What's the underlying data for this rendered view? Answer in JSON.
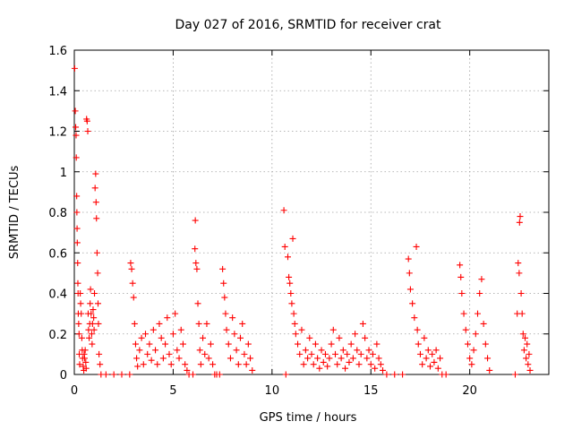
{
  "chart_data": {
    "type": "scatter",
    "title": "Day 027 of 2016, SRMTID for receiver crat",
    "xlabel": "GPS time / hours",
    "ylabel": "SRMTID / TECUs",
    "xlim": [
      0,
      24
    ],
    "ylim": [
      0,
      1.6
    ],
    "xticks": [
      {
        "value": 0,
        "label": "0"
      },
      {
        "value": 5,
        "label": "5"
      },
      {
        "value": 10,
        "label": "10"
      },
      {
        "value": 15,
        "label": "15"
      },
      {
        "value": 20,
        "label": "20"
      }
    ],
    "yticks": [
      {
        "value": 0,
        "label": "0"
      },
      {
        "value": 0.2,
        "label": "0.2"
      },
      {
        "value": 0.4,
        "label": "0.4"
      },
      {
        "value": 0.6,
        "label": "0.6"
      },
      {
        "value": 0.8,
        "label": "0.8"
      },
      {
        "value": 1.0,
        "label": "1"
      },
      {
        "value": 1.2,
        "label": "1.2"
      },
      {
        "value": 1.4,
        "label": "1.4"
      },
      {
        "value": 1.6,
        "label": "1.6"
      }
    ],
    "grid": true,
    "marker": "+",
    "series": [
      {
        "name": "SRMTID",
        "color": "#ff0000",
        "points": [
          [
            0.02,
            1.51
          ],
          [
            0.05,
            1.3
          ],
          [
            0.07,
            1.22
          ],
          [
            0.09,
            1.18
          ],
          [
            0.1,
            1.07
          ],
          [
            0.12,
            0.88
          ],
          [
            0.13,
            0.8
          ],
          [
            0.14,
            0.72
          ],
          [
            0.15,
            0.65
          ],
          [
            0.17,
            0.55
          ],
          [
            0.18,
            0.45
          ],
          [
            0.19,
            0.4
          ],
          [
            0.2,
            0.3
          ],
          [
            0.22,
            0.25
          ],
          [
            0.24,
            0.2
          ],
          [
            0.25,
            0.1
          ],
          [
            0.27,
            0.05
          ],
          [
            0.3,
            0.4
          ],
          [
            0.32,
            0.35
          ],
          [
            0.35,
            0.3
          ],
          [
            0.38,
            0.18
          ],
          [
            0.4,
            0.12
          ],
          [
            0.42,
            0.08
          ],
          [
            0.45,
            0.04
          ],
          [
            0.48,
            0.02
          ],
          [
            0.5,
            0.1
          ],
          [
            0.52,
            0.08
          ],
          [
            0.55,
            0.12
          ],
          [
            0.58,
            0.06
          ],
          [
            0.6,
            0.03
          ],
          [
            0.62,
            1.26
          ],
          [
            0.65,
            1.25
          ],
          [
            0.68,
            1.2
          ],
          [
            0.7,
            0.3
          ],
          [
            0.72,
            0.22
          ],
          [
            0.75,
            0.18
          ],
          [
            0.78,
            0.25
          ],
          [
            0.8,
            0.35
          ],
          [
            0.82,
            0.42
          ],
          [
            0.85,
            0.3
          ],
          [
            0.88,
            0.2
          ],
          [
            0.9,
            0.15
          ],
          [
            0.92,
            0.25
          ],
          [
            0.95,
            0.32
          ],
          [
            0.98,
            0.28
          ],
          [
            1.0,
            0.22
          ],
          [
            1.02,
            0.4
          ],
          [
            1.05,
            0.92
          ],
          [
            1.08,
            0.99
          ],
          [
            1.1,
            0.85
          ],
          [
            1.12,
            0.77
          ],
          [
            1.15,
            0.6
          ],
          [
            1.18,
            0.5
          ],
          [
            1.2,
            0.35
          ],
          [
            1.22,
            0.25
          ],
          [
            1.25,
            0.1
          ],
          [
            1.3,
            0.05
          ],
          [
            1.35,
            0.0
          ],
          [
            1.6,
            0.0
          ],
          [
            2.0,
            0.0
          ],
          [
            2.4,
            0.0
          ],
          [
            2.8,
            0.0
          ],
          [
            2.85,
            0.55
          ],
          [
            2.9,
            0.52
          ],
          [
            2.95,
            0.45
          ],
          [
            3.0,
            0.38
          ],
          [
            3.05,
            0.25
          ],
          [
            3.1,
            0.15
          ],
          [
            3.15,
            0.08
          ],
          [
            3.2,
            0.04
          ],
          [
            3.3,
            0.12
          ],
          [
            3.4,
            0.18
          ],
          [
            3.5,
            0.05
          ],
          [
            3.6,
            0.2
          ],
          [
            3.7,
            0.1
          ],
          [
            3.8,
            0.15
          ],
          [
            3.9,
            0.07
          ],
          [
            4.0,
            0.22
          ],
          [
            4.1,
            0.12
          ],
          [
            4.2,
            0.05
          ],
          [
            4.3,
            0.25
          ],
          [
            4.4,
            0.18
          ],
          [
            4.5,
            0.08
          ],
          [
            4.6,
            0.15
          ],
          [
            4.7,
            0.28
          ],
          [
            4.8,
            0.1
          ],
          [
            4.9,
            0.05
          ],
          [
            5.0,
            0.2
          ],
          [
            5.1,
            0.3
          ],
          [
            5.2,
            0.12
          ],
          [
            5.3,
            0.08
          ],
          [
            5.4,
            0.22
          ],
          [
            5.5,
            0.15
          ],
          [
            5.6,
            0.05
          ],
          [
            5.7,
            0.02
          ],
          [
            5.8,
            0.0
          ],
          [
            6.0,
            0.0
          ],
          [
            6.1,
            0.62
          ],
          [
            6.12,
            0.76
          ],
          [
            6.15,
            0.55
          ],
          [
            6.2,
            0.52
          ],
          [
            6.25,
            0.35
          ],
          [
            6.3,
            0.25
          ],
          [
            6.35,
            0.12
          ],
          [
            6.4,
            0.05
          ],
          [
            6.5,
            0.18
          ],
          [
            6.6,
            0.1
          ],
          [
            6.7,
            0.25
          ],
          [
            6.8,
            0.08
          ],
          [
            6.9,
            0.15
          ],
          [
            7.0,
            0.05
          ],
          [
            7.1,
            0.0
          ],
          [
            7.2,
            0.0
          ],
          [
            7.35,
            0.0
          ],
          [
            7.5,
            0.52
          ],
          [
            7.55,
            0.45
          ],
          [
            7.6,
            0.38
          ],
          [
            7.65,
            0.3
          ],
          [
            7.7,
            0.22
          ],
          [
            7.8,
            0.15
          ],
          [
            7.9,
            0.08
          ],
          [
            8.0,
            0.28
          ],
          [
            8.1,
            0.2
          ],
          [
            8.2,
            0.12
          ],
          [
            8.3,
            0.05
          ],
          [
            8.4,
            0.18
          ],
          [
            8.5,
            0.25
          ],
          [
            8.6,
            0.1
          ],
          [
            8.7,
            0.05
          ],
          [
            8.8,
            0.15
          ],
          [
            8.9,
            0.08
          ],
          [
            9.0,
            0.02
          ],
          [
            10.6,
            0.81
          ],
          [
            10.65,
            0.63
          ],
          [
            10.7,
            0.0
          ],
          [
            10.8,
            0.58
          ],
          [
            10.85,
            0.48
          ],
          [
            10.9,
            0.45
          ],
          [
            10.95,
            0.4
          ],
          [
            11.0,
            0.35
          ],
          [
            11.05,
            0.67
          ],
          [
            11.1,
            0.3
          ],
          [
            11.15,
            0.25
          ],
          [
            11.2,
            0.2
          ],
          [
            11.3,
            0.15
          ],
          [
            11.4,
            0.1
          ],
          [
            11.5,
            0.22
          ],
          [
            11.6,
            0.05
          ],
          [
            11.7,
            0.12
          ],
          [
            11.8,
            0.08
          ],
          [
            11.9,
            0.18
          ],
          [
            12.0,
            0.1
          ],
          [
            12.1,
            0.05
          ],
          [
            12.2,
            0.15
          ],
          [
            12.3,
            0.08
          ],
          [
            12.4,
            0.03
          ],
          [
            12.5,
            0.12
          ],
          [
            12.6,
            0.06
          ],
          [
            12.7,
            0.1
          ],
          [
            12.8,
            0.04
          ],
          [
            12.9,
            0.08
          ],
          [
            13.0,
            0.15
          ],
          [
            13.1,
            0.22
          ],
          [
            13.2,
            0.1
          ],
          [
            13.3,
            0.05
          ],
          [
            13.4,
            0.18
          ],
          [
            13.5,
            0.08
          ],
          [
            13.6,
            0.12
          ],
          [
            13.7,
            0.03
          ],
          [
            13.8,
            0.1
          ],
          [
            13.9,
            0.06
          ],
          [
            14.0,
            0.15
          ],
          [
            14.1,
            0.08
          ],
          [
            14.2,
            0.2
          ],
          [
            14.3,
            0.12
          ],
          [
            14.4,
            0.05
          ],
          [
            14.5,
            0.1
          ],
          [
            14.6,
            0.25
          ],
          [
            14.7,
            0.18
          ],
          [
            14.8,
            0.08
          ],
          [
            14.9,
            0.12
          ],
          [
            15.0,
            0.05
          ],
          [
            15.1,
            0.1
          ],
          [
            15.2,
            0.03
          ],
          [
            15.3,
            0.15
          ],
          [
            15.4,
            0.08
          ],
          [
            15.5,
            0.05
          ],
          [
            15.6,
            0.02
          ],
          [
            15.8,
            0.0
          ],
          [
            16.2,
            0.0
          ],
          [
            16.6,
            0.0
          ],
          [
            16.9,
            0.57
          ],
          [
            16.95,
            0.5
          ],
          [
            17.0,
            0.42
          ],
          [
            17.1,
            0.35
          ],
          [
            17.2,
            0.28
          ],
          [
            17.3,
            0.63
          ],
          [
            17.35,
            0.22
          ],
          [
            17.4,
            0.15
          ],
          [
            17.5,
            0.1
          ],
          [
            17.6,
            0.05
          ],
          [
            17.7,
            0.18
          ],
          [
            17.8,
            0.08
          ],
          [
            17.9,
            0.12
          ],
          [
            18.0,
            0.04
          ],
          [
            18.1,
            0.1
          ],
          [
            18.2,
            0.06
          ],
          [
            18.3,
            0.12
          ],
          [
            18.4,
            0.03
          ],
          [
            18.5,
            0.08
          ],
          [
            18.6,
            0.0
          ],
          [
            18.8,
            0.0
          ],
          [
            19.5,
            0.54
          ],
          [
            19.55,
            0.48
          ],
          [
            19.6,
            0.4
          ],
          [
            19.7,
            0.3
          ],
          [
            19.8,
            0.22
          ],
          [
            19.9,
            0.15
          ],
          [
            20.0,
            0.08
          ],
          [
            20.1,
            0.05
          ],
          [
            20.2,
            0.12
          ],
          [
            20.3,
            0.2
          ],
          [
            20.4,
            0.3
          ],
          [
            20.5,
            0.4
          ],
          [
            20.6,
            0.47
          ],
          [
            20.7,
            0.25
          ],
          [
            20.8,
            0.15
          ],
          [
            20.9,
            0.08
          ],
          [
            21.0,
            0.02
          ],
          [
            22.3,
            0.0
          ],
          [
            22.4,
            0.3
          ],
          [
            22.45,
            0.55
          ],
          [
            22.5,
            0.5
          ],
          [
            22.52,
            0.75
          ],
          [
            22.55,
            0.78
          ],
          [
            22.6,
            0.4
          ],
          [
            22.65,
            0.3
          ],
          [
            22.7,
            0.2
          ],
          [
            22.75,
            0.12
          ],
          [
            22.8,
            0.18
          ],
          [
            22.85,
            0.08
          ],
          [
            22.9,
            0.15
          ],
          [
            22.95,
            0.05
          ],
          [
            23.0,
            0.1
          ],
          [
            23.05,
            0.02
          ]
        ]
      }
    ]
  }
}
